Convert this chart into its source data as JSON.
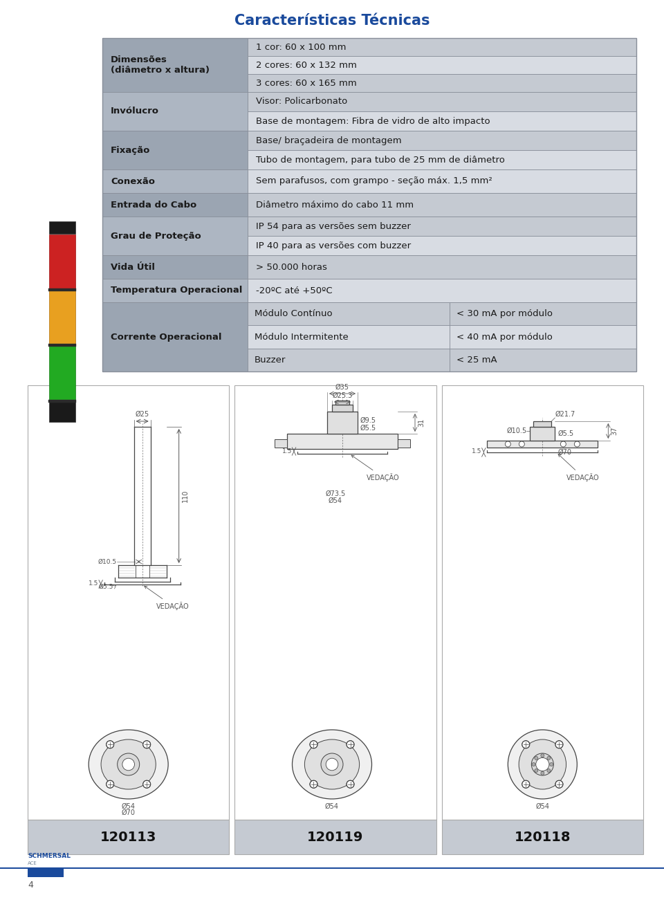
{
  "title": "Características Técnicas",
  "title_color": "#1a4a9c",
  "title_fontsize": 15,
  "bg_color": "#ffffff",
  "table_label_bg_dark": "#9ba5b2",
  "table_label_bg_light": "#adb6c2",
  "table_value_bg_dark": "#c5cad2",
  "table_value_bg_light": "#d8dce3",
  "table_border": "#888e99",
  "label_color": "#1a1a1a",
  "value_color": "#1a1a1a",
  "rows": [
    {
      "label": "Dimensões\n(diâmetro x altura)",
      "values": [
        "1 cor: 60 x 100 mm",
        "2 cores: 60 x 132 mm",
        "3 cores: 60 x 165 mm"
      ],
      "nvalues": 3
    },
    {
      "label": "Invólucro",
      "values": [
        "Visor: Policarbonato",
        "Base de montagem: Fibra de vidro de alto impacto"
      ],
      "nvalues": 2
    },
    {
      "label": "Fixação",
      "values": [
        "Base/ braçadeira de montagem",
        "Tubo de montagem, para tubo de 25 mm de diâmetro"
      ],
      "nvalues": 2
    },
    {
      "label": "Conexão",
      "values": [
        "Sem parafusos, com grampo - seção máx. 1,5 mm²"
      ],
      "nvalues": 1
    },
    {
      "label": "Entrada do Cabo",
      "values": [
        "Diâmetro máximo do cabo 11 mm"
      ],
      "nvalues": 1
    },
    {
      "label": "Grau de Proteção",
      "values": [
        "IP 54 para as versões sem buzzer",
        "IP 40 para as versões com buzzer"
      ],
      "nvalues": 2
    },
    {
      "label": "Vida Útil",
      "values": [
        "> 50.000 horas"
      ],
      "nvalues": 1
    },
    {
      "label": "Temperatura Operacional",
      "values": [
        "-20ºC até +50ºC"
      ],
      "nvalues": 1
    },
    {
      "label": "Corrente Operacional",
      "values": [],
      "nvalues": 0,
      "cols": [
        [
          "Módulo Contínuo",
          "< 30 mA por módulo"
        ],
        [
          "Módulo Intermitente",
          "< 40 mA por módulo"
        ],
        [
          "Buzzer",
          "< 25 mA"
        ]
      ]
    }
  ],
  "footer_line_color": "#1a4a9c",
  "footer_rect_color": "#1a4a9c",
  "panel_bg": "#ffffff",
  "panel_border": "#aaaaaa",
  "panel_label_bg": "#c5cad2",
  "diag_line": "#444444",
  "diag_dim": "#555555"
}
